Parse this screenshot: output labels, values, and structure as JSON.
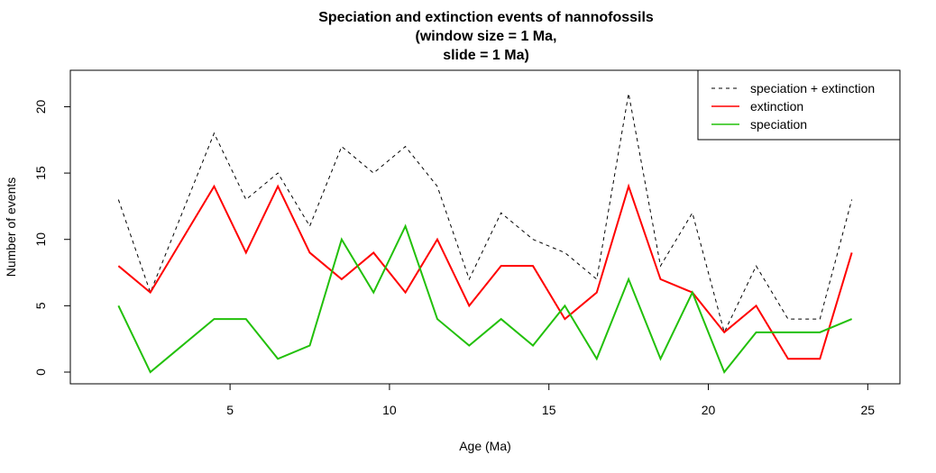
{
  "chart_data": {
    "type": "line",
    "title_lines": [
      "Speciation and extinction events of nannofossils",
      "(window size =  1 Ma,",
      "slide = 1 Ma)"
    ],
    "xlabel": "Age (Ma)",
    "ylabel": "Number of events",
    "xlim": [
      0.5,
      25.5
    ],
    "ylim": [
      0,
      22
    ],
    "xticks": [
      5,
      10,
      15,
      20,
      25
    ],
    "yticks": [
      0,
      5,
      10,
      15,
      20
    ],
    "grid": false,
    "legend_position": "top-right",
    "x": [
      1.5,
      2.5,
      3.5,
      4.5,
      5.5,
      6.5,
      7.5,
      8.5,
      9.5,
      10.5,
      11.5,
      12.5,
      13.5,
      14.5,
      15.5,
      16.5,
      17.5,
      18.5,
      19.5,
      20.5,
      21.5,
      22.5,
      23.5,
      24.5
    ],
    "series": [
      {
        "name": "speciation + extinction",
        "color": "#000000",
        "dash": "dashed",
        "width": 1,
        "values": [
          13,
          6,
          12,
          18,
          13,
          15,
          11,
          17,
          15,
          17,
          14,
          7,
          12,
          10,
          9,
          7,
          21,
          8,
          12,
          3,
          8,
          4,
          4,
          13
        ]
      },
      {
        "name": "extinction",
        "color": "#ff0000",
        "dash": "solid",
        "width": 2,
        "values": [
          8,
          6,
          10,
          14,
          9,
          14,
          9,
          7,
          9,
          6,
          10,
          5,
          8,
          8,
          4,
          6,
          14,
          7,
          6,
          3,
          5,
          1,
          1,
          9
        ]
      },
      {
        "name": "speciation",
        "color": "#22c00a",
        "dash": "solid",
        "width": 2,
        "values": [
          5,
          0,
          2,
          4,
          4,
          1,
          2,
          10,
          6,
          11,
          4,
          2,
          4,
          2,
          5,
          1,
          7,
          1,
          6,
          0,
          3,
          3,
          3,
          4
        ]
      }
    ]
  }
}
